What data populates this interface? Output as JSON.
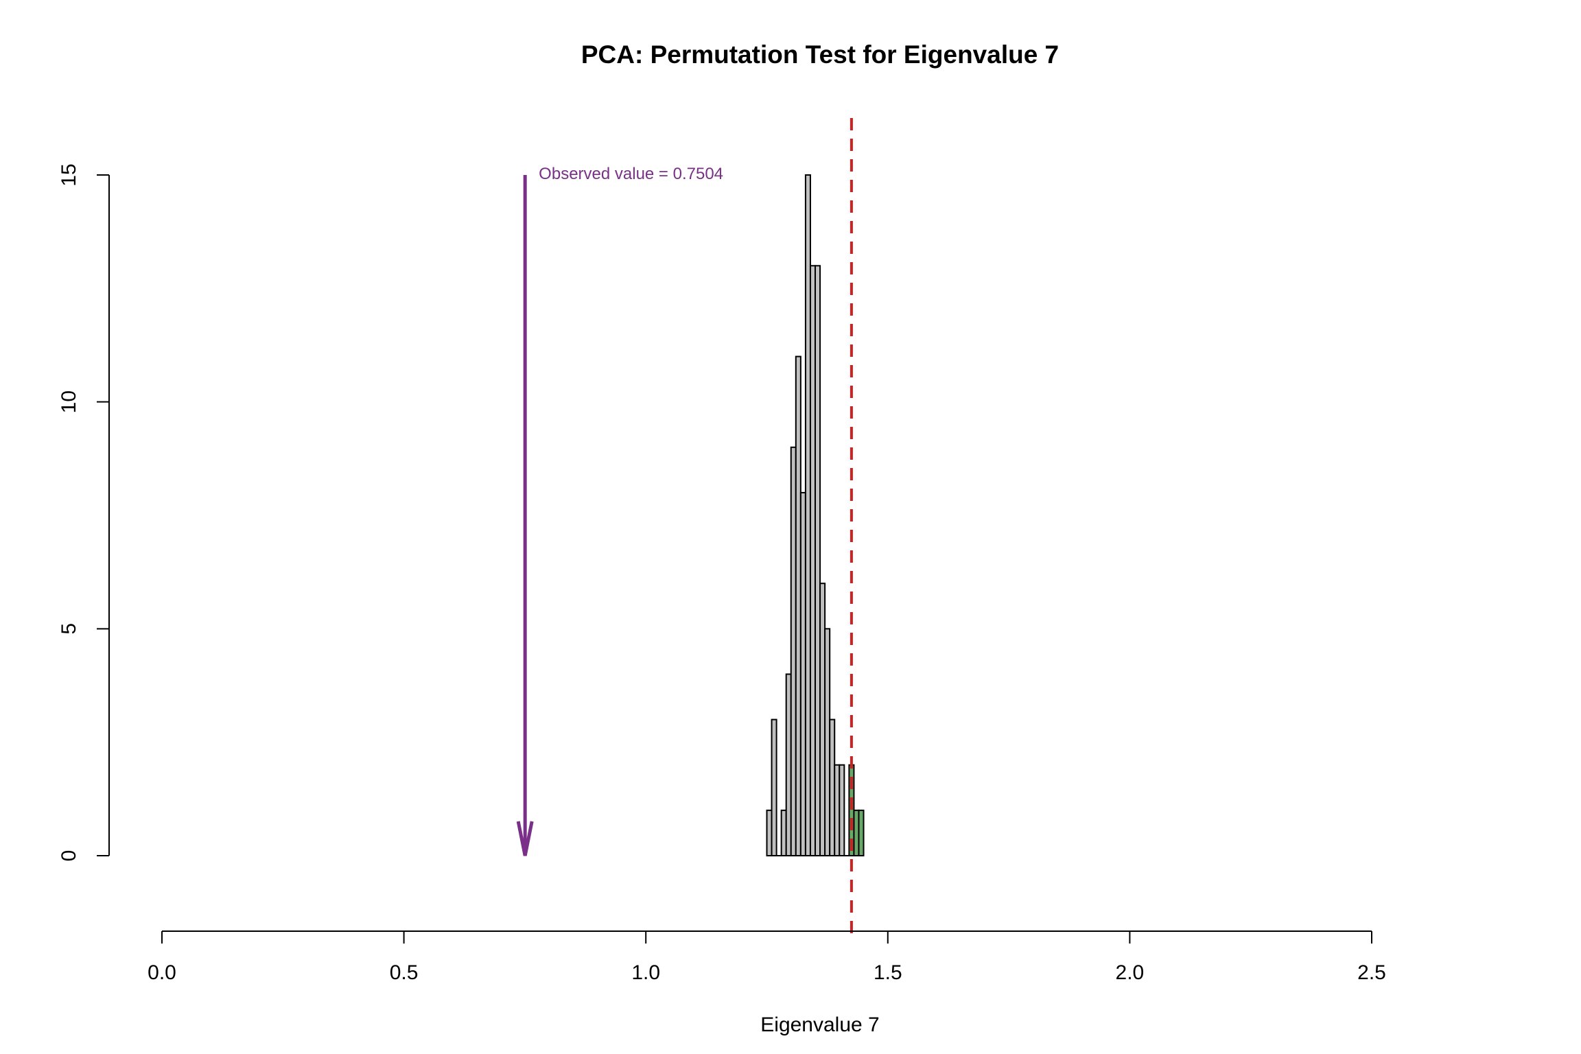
{
  "chart_data": {
    "type": "bar",
    "title": "PCA: Permutation Test for Eigenvalue 7",
    "xlabel": "Eigenvalue 7",
    "ylabel": "",
    "xlim": [
      0.0,
      2.5
    ],
    "ylim": [
      0,
      15
    ],
    "x_ticks": [
      "0.0",
      "0.5",
      "1.0",
      "1.5",
      "2.0",
      "2.5"
    ],
    "y_ticks": [
      "0",
      "5",
      "10",
      "15"
    ],
    "grid": false,
    "legend": "none",
    "bin_width": 0.01,
    "bins": [
      {
        "x0": 1.25,
        "x1": 1.26,
        "count": 1
      },
      {
        "x0": 1.26,
        "x1": 1.27,
        "count": 3
      },
      {
        "x0": 1.27,
        "x1": 1.28,
        "count": 0
      },
      {
        "x0": 1.28,
        "x1": 1.29,
        "count": 1
      },
      {
        "x0": 1.29,
        "x1": 1.3,
        "count": 4
      },
      {
        "x0": 1.3,
        "x1": 1.31,
        "count": 9
      },
      {
        "x0": 1.31,
        "x1": 1.32,
        "count": 11
      },
      {
        "x0": 1.32,
        "x1": 1.33,
        "count": 8
      },
      {
        "x0": 1.33,
        "x1": 1.34,
        "count": 15
      },
      {
        "x0": 1.34,
        "x1": 1.35,
        "count": 13
      },
      {
        "x0": 1.35,
        "x1": 1.36,
        "count": 13
      },
      {
        "x0": 1.36,
        "x1": 1.37,
        "count": 6
      },
      {
        "x0": 1.37,
        "x1": 1.38,
        "count": 5
      },
      {
        "x0": 1.38,
        "x1": 1.39,
        "count": 3
      },
      {
        "x0": 1.39,
        "x1": 1.4,
        "count": 2
      },
      {
        "x0": 1.4,
        "x1": 1.41,
        "count": 2
      },
      {
        "x0": 1.41,
        "x1": 1.42,
        "count": 0
      },
      {
        "x0": 1.42,
        "x1": 1.43,
        "count": 2
      },
      {
        "x0": 1.43,
        "x1": 1.44,
        "count": 1
      },
      {
        "x0": 1.44,
        "x1": 1.45,
        "count": 1
      }
    ],
    "threshold": 1.425,
    "observed": {
      "value": 0.7504,
      "label": "Observed value = 0.7504"
    },
    "colors": {
      "bar_fill": "#c0c0c0",
      "bar_extreme_fill": "#6aa86a",
      "threshold_line": "#cc2222",
      "observed_arrow": "#7a3088"
    }
  }
}
